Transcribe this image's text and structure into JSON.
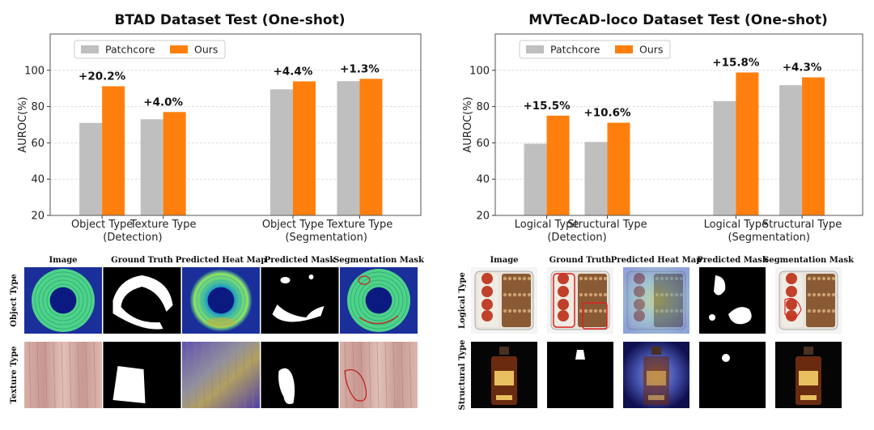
{
  "chart_data": [
    {
      "type": "bar",
      "title": "BTAD Dataset Test (One-shot)",
      "ylabel": "AUROC(%)",
      "ylim": [
        20,
        120
      ],
      "yticks": [
        20,
        40,
        60,
        80,
        100
      ],
      "grid": true,
      "legend": "top-left",
      "groups": [
        {
          "categories": [
            "Object Type",
            "Texture Type"
          ],
          "label": "(Detection)"
        },
        {
          "categories": [
            "Object Type",
            "Texture Type"
          ],
          "label": "(Segmentation)"
        }
      ],
      "series": [
        {
          "name": "Patchcore",
          "color": "#bfbfbf",
          "values": [
            71.0,
            73.0,
            89.5,
            94.0
          ]
        },
        {
          "name": "Ours",
          "color": "#ff7f0e",
          "values": [
            91.2,
            77.0,
            93.9,
            95.3
          ]
        }
      ],
      "annotations": [
        "+20.2%",
        "+4.0%",
        "+4.4%",
        "+1.3%"
      ]
    },
    {
      "type": "bar",
      "title": "MVTecAD-loco Dataset Test (One-shot)",
      "ylabel": "AUROC(%)",
      "ylim": [
        20,
        120
      ],
      "yticks": [
        20,
        40,
        60,
        80,
        100
      ],
      "grid": true,
      "legend": "top-left",
      "groups": [
        {
          "categories": [
            "Logical Type",
            "Structural Type"
          ],
          "label": "(Detection)"
        },
        {
          "categories": [
            "Logical Type",
            "Structural Type"
          ],
          "label": "(Segmentation)"
        }
      ],
      "series": [
        {
          "name": "Patchcore",
          "color": "#bfbfbf",
          "values": [
            59.5,
            60.5,
            83.0,
            91.8
          ]
        },
        {
          "name": "Ours",
          "color": "#ff7f0e",
          "values": [
            75.0,
            71.1,
            98.8,
            96.1
          ]
        }
      ],
      "annotations": [
        "+15.5%",
        "+10.6%",
        "+15.8%",
        "+4.3%"
      ]
    }
  ],
  "panels": [
    {
      "columns": [
        "Image",
        "Ground Truth",
        "Predicted Heat Map",
        "Predicted Mask",
        "Segmentation Mask"
      ],
      "rows": [
        "Object Type",
        "Texture Type"
      ]
    },
    {
      "columns": [
        "Image",
        "Ground Truth",
        "Predicted Heat Map",
        "Predicted Mask",
        "Segmentation Mask"
      ],
      "rows": [
        "Logical Type",
        "Structural Type"
      ]
    }
  ]
}
